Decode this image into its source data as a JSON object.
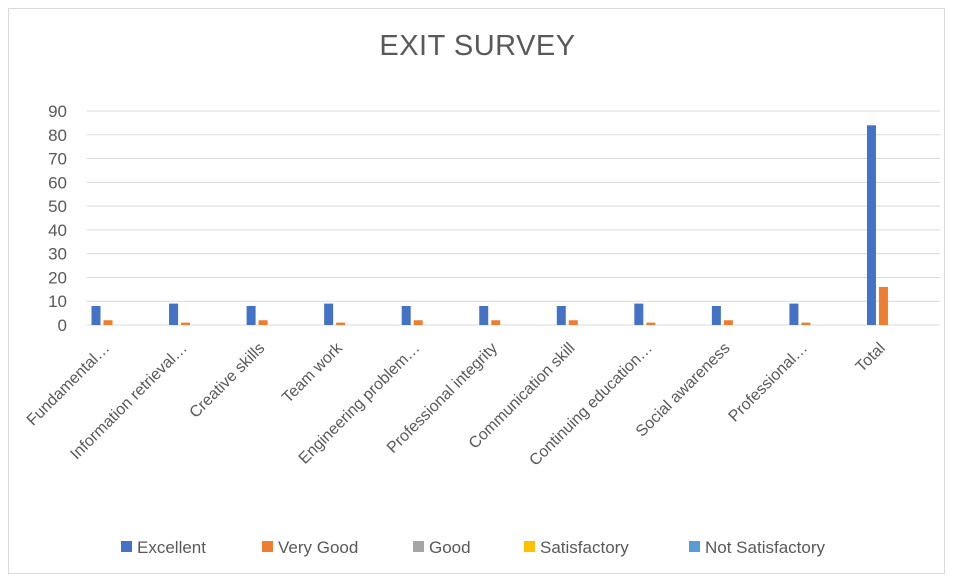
{
  "chart_data": {
    "type": "bar",
    "title": "EXIT SURVEY",
    "xlabel": "",
    "ylabel": "",
    "ylim": [
      0,
      90
    ],
    "yticks": [
      0,
      10,
      20,
      30,
      40,
      50,
      60,
      70,
      80,
      90
    ],
    "grid": true,
    "legend_position": "bottom",
    "categories": [
      "Fundamental…",
      "Information retrieval…",
      "Creative skills",
      "Team work",
      "Engineering problem…",
      "Professional integrity",
      "Communication skill",
      "Continuing education…",
      "Social awareness",
      "Professional…",
      "Total"
    ],
    "series": [
      {
        "name": "Excellent",
        "color": "#4472c4",
        "values": [
          8,
          9,
          8,
          9,
          8,
          8,
          8,
          9,
          8,
          9,
          84
        ]
      },
      {
        "name": "Very Good",
        "color": "#ed7d31",
        "values": [
          2,
          1,
          2,
          1,
          2,
          2,
          2,
          1,
          2,
          1,
          16
        ]
      },
      {
        "name": "Good",
        "color": "#a5a5a5",
        "values": [
          0,
          0,
          0,
          0,
          0,
          0,
          0,
          0,
          0,
          0,
          0
        ]
      },
      {
        "name": "Satisfactory",
        "color": "#ffc000",
        "values": [
          0,
          0,
          0,
          0,
          0,
          0,
          0,
          0,
          0,
          0,
          0
        ]
      },
      {
        "name": "Not Satisfactory",
        "color": "#5b9bd5",
        "values": [
          0,
          0,
          0,
          0,
          0,
          0,
          0,
          0,
          0,
          0,
          0
        ]
      }
    ]
  }
}
